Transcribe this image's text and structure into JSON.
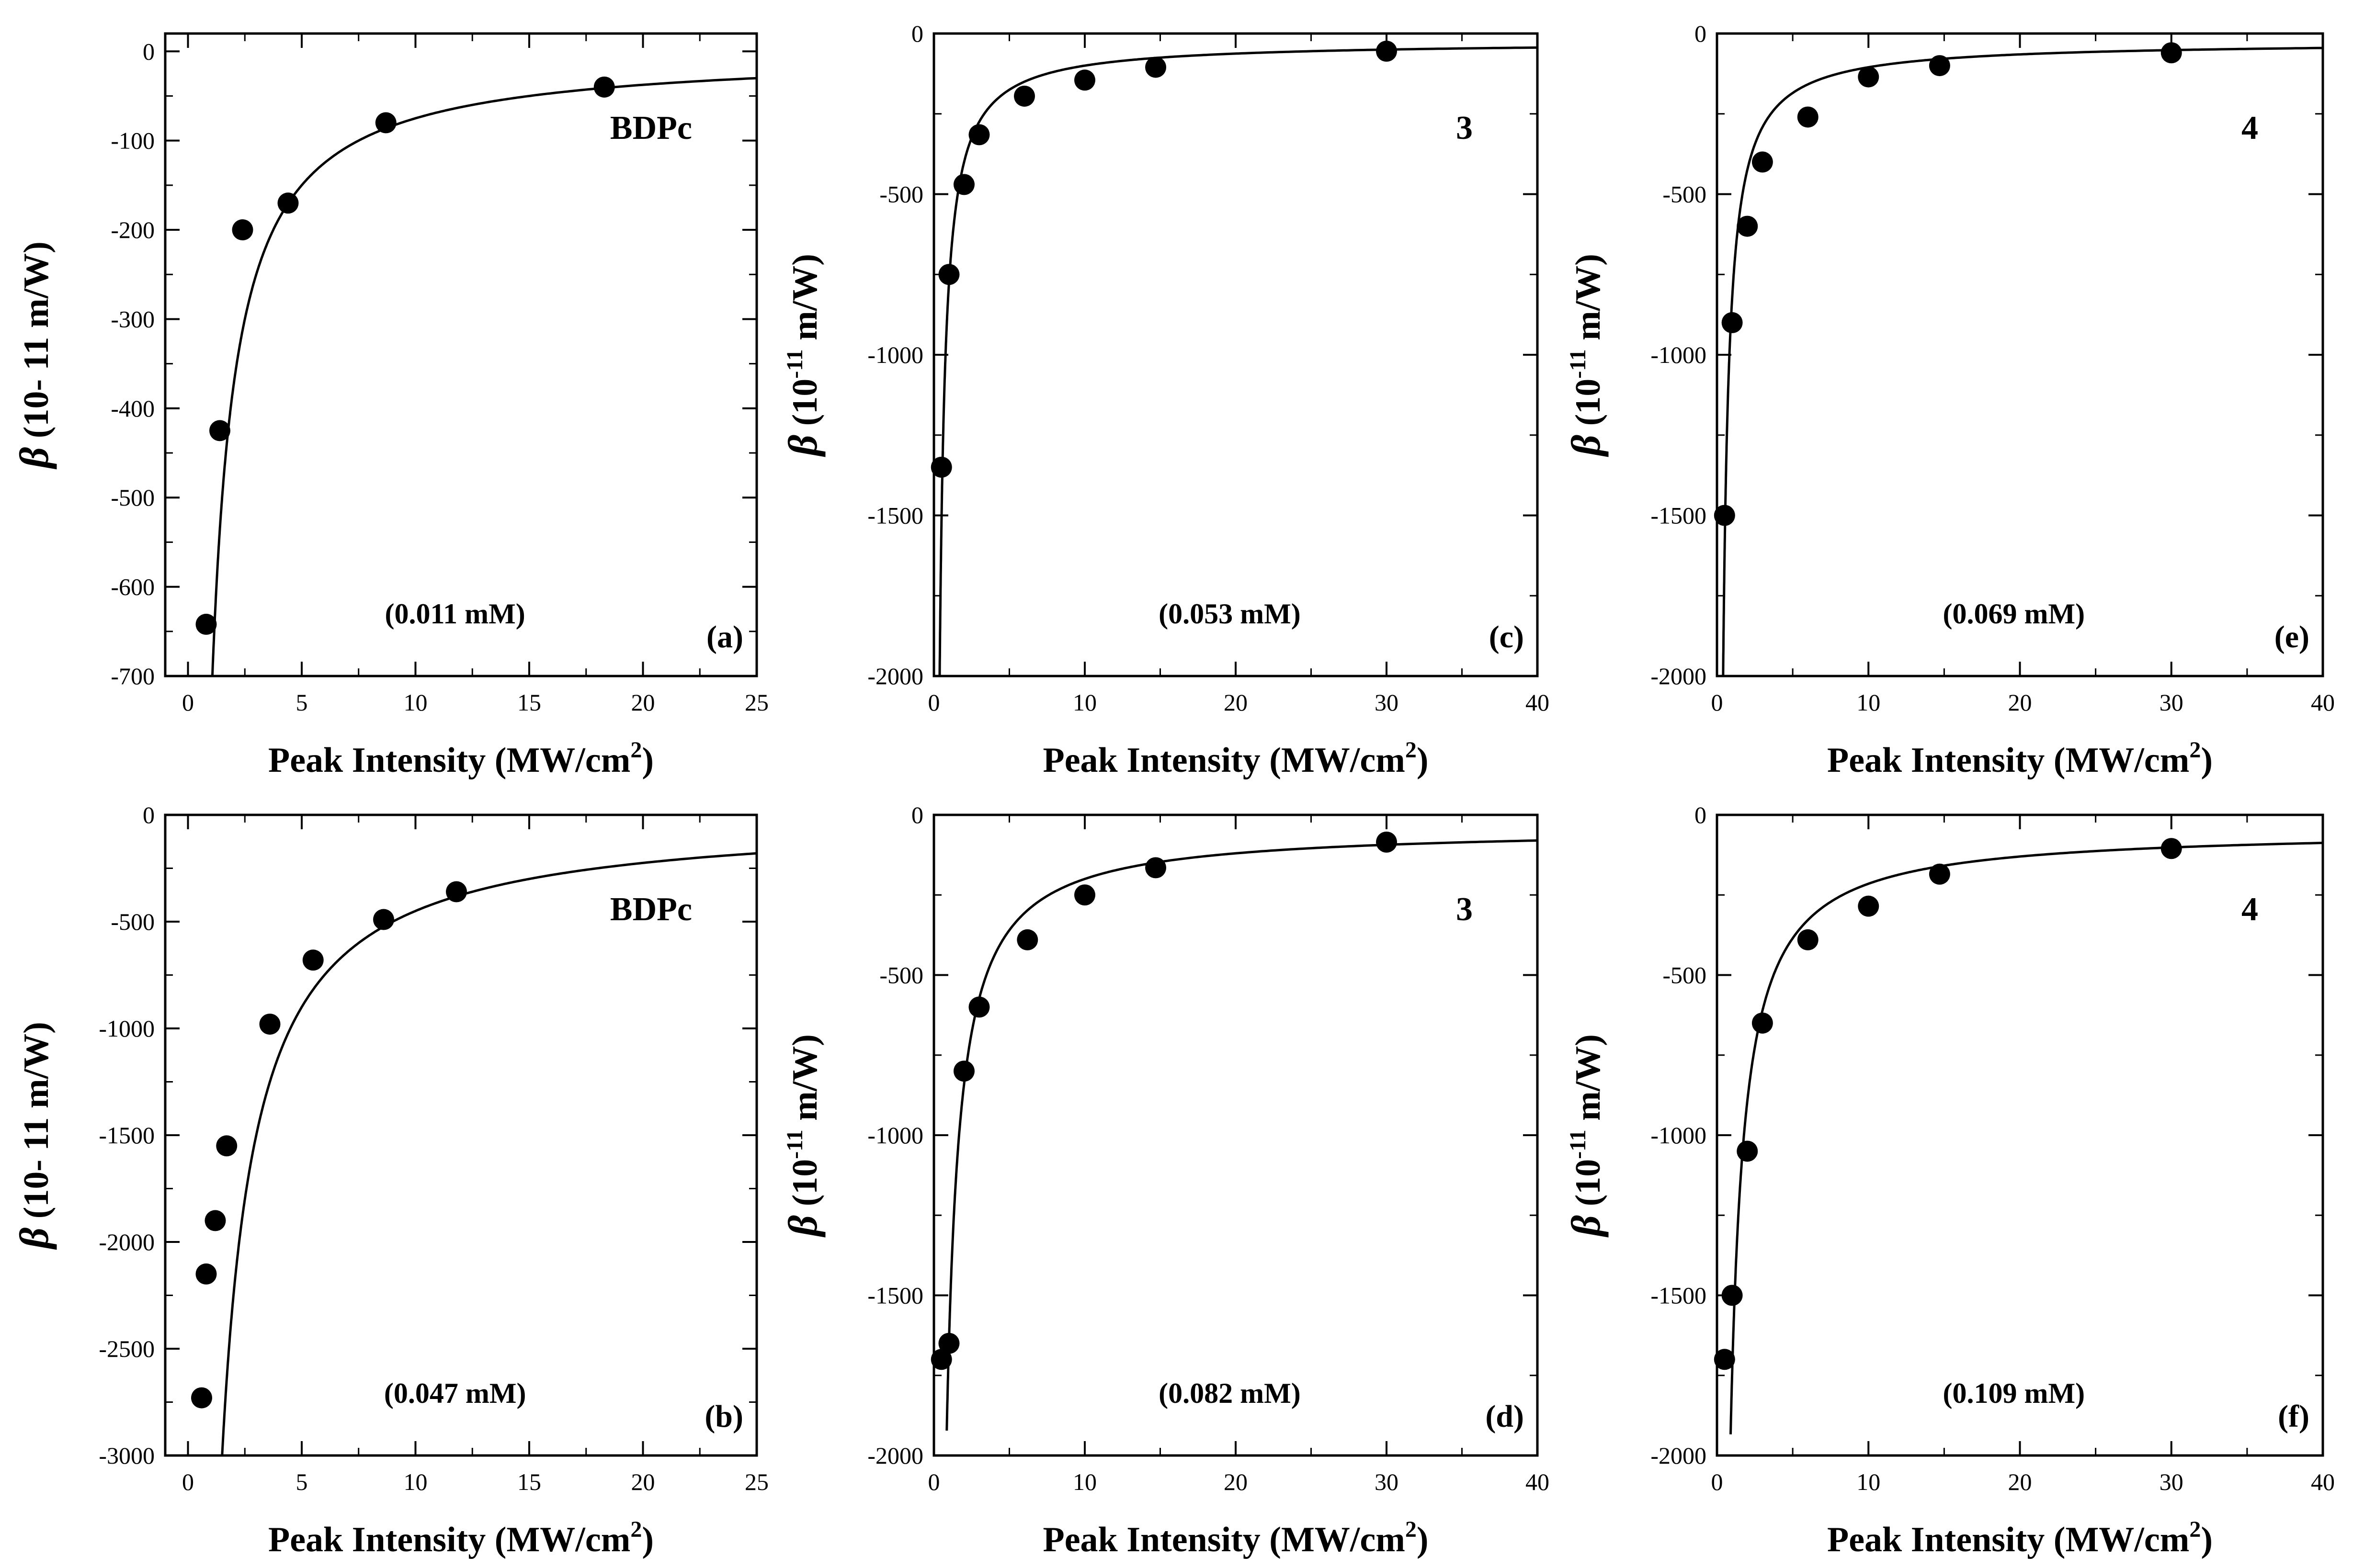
{
  "figure": {
    "description_note": "Six panels of nonlinear absorption coefficient beta vs peak intensity",
    "colors": {
      "axis": "#000000",
      "marker": "#000000",
      "curve": "#000000",
      "background": "#ffffff"
    }
  },
  "chart_data": [
    {
      "id": "a",
      "type": "scatter",
      "panel_label": "(a)",
      "compound": "BDPc",
      "concentration": "(0.011 mM)",
      "xlabel_main": "Peak Intensity (MW/cm",
      "xlabel_sup": "2",
      "xlabel_end": ")",
      "ylabel_symbol": "β",
      "ylabel_main": " (10- 11 m/W)",
      "ylabel_sup": "",
      "ylabel_end": "",
      "xlim": [
        -1,
        25
      ],
      "ylim": [
        -700,
        20
      ],
      "xticks": [
        0,
        5,
        10,
        15,
        20,
        25
      ],
      "yticks": [
        0,
        -100,
        -200,
        -300,
        -400,
        -500,
        -600,
        -700
      ],
      "points": [
        [
          0.8,
          -642
        ],
        [
          1.4,
          -425
        ],
        [
          2.4,
          -200
        ],
        [
          4.4,
          -170
        ],
        [
          8.7,
          -80
        ],
        [
          18.3,
          -40
        ]
      ],
      "fit": {
        "model": "a/x",
        "A": -750,
        "B": 0,
        "xmin": 0.9,
        "xmax": 25
      }
    },
    {
      "id": "c",
      "type": "scatter",
      "panel_label": "(c)",
      "compound": "3",
      "concentration": "(0.053 mM)",
      "xlabel_main": "Peak Intensity (MW/cm",
      "xlabel_sup": "2",
      "xlabel_end": ")",
      "ylabel_symbol": "β",
      "ylabel_main": " (10",
      "ylabel_sup": "-11",
      "ylabel_end": " m/W)",
      "xlim": [
        0,
        40
      ],
      "ylim": [
        -2000,
        0
      ],
      "xticks": [
        0,
        10,
        20,
        30,
        40
      ],
      "yticks": [
        0,
        -500,
        -1000,
        -1500,
        -2000
      ],
      "points": [
        [
          0.5,
          -1350
        ],
        [
          1.0,
          -750
        ],
        [
          2.0,
          -470
        ],
        [
          3.0,
          -315
        ],
        [
          6.0,
          -195
        ],
        [
          10.0,
          -145
        ],
        [
          14.7,
          -105
        ],
        [
          30.0,
          -55
        ]
      ],
      "fit": {
        "model": "a/x+b",
        "A": -750,
        "B": -25,
        "xmin": 0.35,
        "xmax": 40
      }
    },
    {
      "id": "e",
      "type": "scatter",
      "panel_label": "(e)",
      "compound": "4",
      "concentration": "(0.069 mM)",
      "xlabel_main": "Peak Intensity (MW/cm",
      "xlabel_sup": "2",
      "xlabel_end": ")",
      "ylabel_symbol": "β",
      "ylabel_main": " (10",
      "ylabel_sup": "-11",
      "ylabel_end": " m/W)",
      "xlim": [
        0,
        40
      ],
      "ylim": [
        -2000,
        0
      ],
      "xticks": [
        0,
        10,
        20,
        30,
        40
      ],
      "yticks": [
        0,
        -500,
        -1000,
        -1500,
        -2000
      ],
      "points": [
        [
          0.5,
          -1500
        ],
        [
          1.0,
          -900
        ],
        [
          2.0,
          -600
        ],
        [
          3.0,
          -400
        ],
        [
          6.0,
          -260
        ],
        [
          10.0,
          -135
        ],
        [
          14.7,
          -100
        ],
        [
          30.0,
          -60
        ]
      ],
      "fit": {
        "model": "a/x+b",
        "A": -800,
        "B": -25,
        "xmin": 0.4,
        "xmax": 40
      }
    },
    {
      "id": "b",
      "type": "scatter",
      "panel_label": "(b)",
      "compound": "BDPc",
      "concentration": "(0.047 mM)",
      "xlabel_main": "Peak Intensity (MW/cm",
      "xlabel_sup": "2",
      "xlabel_end": ")",
      "ylabel_symbol": "β",
      "ylabel_main": " (10- 11 m/W)",
      "ylabel_sup": "",
      "ylabel_end": "",
      "xlim": [
        -1,
        25
      ],
      "ylim": [
        -3000,
        0
      ],
      "xticks": [
        0,
        5,
        10,
        15,
        20,
        25
      ],
      "yticks": [
        0,
        -500,
        -1000,
        -1500,
        -2000,
        -2500,
        -3000
      ],
      "points": [
        [
          0.6,
          -2730
        ],
        [
          0.8,
          -2150
        ],
        [
          1.2,
          -1900
        ],
        [
          1.7,
          -1550
        ],
        [
          3.6,
          -980
        ],
        [
          5.5,
          -680
        ],
        [
          8.6,
          -490
        ],
        [
          11.8,
          -360
        ]
      ],
      "fit": {
        "model": "a/x",
        "A": -4500,
        "B": 0,
        "xmin": 1.5,
        "xmax": 25
      }
    },
    {
      "id": "d",
      "type": "scatter",
      "panel_label": "(d)",
      "compound": "3",
      "concentration": "(0.082 mM)",
      "xlabel_main": "Peak Intensity (MW/cm",
      "xlabel_sup": "2",
      "xlabel_end": ")",
      "ylabel_symbol": "β",
      "ylabel_main": " (10",
      "ylabel_sup": "-11",
      "ylabel_end": " m/W)",
      "xlim": [
        0,
        40
      ],
      "ylim": [
        -2000,
        0
      ],
      "xticks": [
        0,
        10,
        20,
        30,
        40
      ],
      "yticks": [
        0,
        -500,
        -1000,
        -1500,
        -2000
      ],
      "points": [
        [
          0.5,
          -1700
        ],
        [
          1.0,
          -1650
        ],
        [
          2.0,
          -800
        ],
        [
          3.0,
          -600
        ],
        [
          6.2,
          -390
        ],
        [
          10.0,
          -250
        ],
        [
          14.7,
          -165
        ],
        [
          30.0,
          -85
        ]
      ],
      "fit": {
        "model": "a/x+b",
        "A": -1600,
        "B": -40,
        "xmin": 0.85,
        "xmax": 40
      }
    },
    {
      "id": "f",
      "type": "scatter",
      "panel_label": "(f)",
      "compound": "4",
      "concentration": "(0.109 mM)",
      "xlabel_main": "Peak Intensity (MW/cm",
      "xlabel_sup": "2",
      "xlabel_end": ")",
      "ylabel_symbol": "β",
      "ylabel_main": " (10",
      "ylabel_sup": "-11",
      "ylabel_end": " m/W)",
      "xlim": [
        0,
        40
      ],
      "ylim": [
        -2000,
        0
      ],
      "xticks": [
        0,
        10,
        20,
        30,
        40
      ],
      "yticks": [
        0,
        -500,
        -1000,
        -1500,
        -2000
      ],
      "points": [
        [
          0.5,
          -1700
        ],
        [
          1.0,
          -1500
        ],
        [
          2.0,
          -1050
        ],
        [
          3.0,
          -650
        ],
        [
          6.0,
          -390
        ],
        [
          10.0,
          -285
        ],
        [
          14.7,
          -185
        ],
        [
          30.0,
          -105
        ]
      ],
      "fit": {
        "model": "a/x+b",
        "A": -1700,
        "B": -45,
        "xmin": 0.9,
        "xmax": 40
      }
    }
  ]
}
